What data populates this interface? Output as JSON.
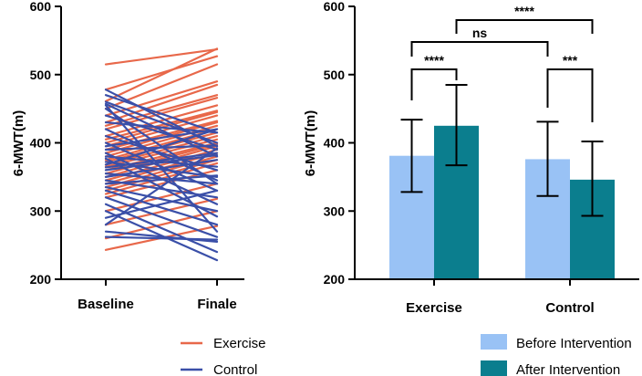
{
  "chart_data": [
    {
      "type": "line",
      "subtype": "paired-slope",
      "ylabel": "6-MWT(m)",
      "categories": [
        "Baseline",
        "Finale"
      ],
      "ylim": [
        200,
        600
      ],
      "yticks": [
        200,
        300,
        400,
        500,
        600
      ],
      "series": [
        {
          "name": "Exercise",
          "color": "#e8684a",
          "pairs": [
            [
              515,
              537
            ],
            [
              478,
              527
            ],
            [
              461,
              538
            ],
            [
              450,
              515
            ],
            [
              440,
              490
            ],
            [
              430,
              485
            ],
            [
              425,
              470
            ],
            [
              420,
              466
            ],
            [
              410,
              455
            ],
            [
              405,
              447
            ],
            [
              400,
              445
            ],
            [
              395,
              440
            ],
            [
              390,
              432
            ],
            [
              385,
              430
            ],
            [
              380,
              425
            ],
            [
              375,
              420
            ],
            [
              372,
              415
            ],
            [
              368,
              410
            ],
            [
              365,
              405
            ],
            [
              360,
              400
            ],
            [
              355,
              398
            ],
            [
              350,
              395
            ],
            [
              345,
              390
            ],
            [
              340,
              385
            ],
            [
              335,
              380
            ],
            [
              330,
              375
            ],
            [
              325,
              370
            ],
            [
              320,
              360
            ],
            [
              300,
              340
            ],
            [
              280,
              318
            ],
            [
              260,
              300
            ],
            [
              243,
              278
            ]
          ]
        },
        {
          "name": "Control",
          "color": "#3a4fa8",
          "pairs": [
            [
              478,
              395
            ],
            [
              470,
              415
            ],
            [
              460,
              400
            ],
            [
              457,
              380
            ],
            [
              455,
              270
            ],
            [
              450,
              340
            ],
            [
              440,
              390
            ],
            [
              430,
              415
            ],
            [
              420,
              345
            ],
            [
              410,
              360
            ],
            [
              400,
              330
            ],
            [
              395,
              420
            ],
            [
              390,
              396
            ],
            [
              385,
              310
            ],
            [
              380,
              365
            ],
            [
              377,
              292
            ],
            [
              372,
              350
            ],
            [
              368,
              420
            ],
            [
              364,
              385
            ],
            [
              360,
              382
            ],
            [
              355,
              340
            ],
            [
              350,
              375
            ],
            [
              345,
              320
            ],
            [
              340,
              352
            ],
            [
              335,
              300
            ],
            [
              330,
              280
            ],
            [
              320,
              262
            ],
            [
              310,
              240
            ],
            [
              300,
              228
            ],
            [
              290,
              330
            ],
            [
              280,
              392
            ],
            [
              270,
              255
            ],
            [
              262,
              258
            ]
          ]
        }
      ],
      "legend": [
        "Exercise",
        "Control"
      ]
    },
    {
      "type": "bar",
      "categories": [
        "Exercise",
        "Control"
      ],
      "ylabel": "6-MWT(m)",
      "ylim": [
        200,
        600
      ],
      "yticks": [
        200,
        300,
        400,
        500,
        600
      ],
      "series": [
        {
          "name": "Before Intervention",
          "color": "#99c2f5",
          "values": [
            381,
            376
          ],
          "err_low": [
            328,
            322
          ],
          "err_high": [
            434,
            431
          ]
        },
        {
          "name": "After Intervention",
          "color": "#0b7e8e",
          "values": [
            425,
            346
          ],
          "err_low": [
            367,
            293
          ],
          "err_high": [
            485,
            402
          ]
        }
      ],
      "significance": [
        {
          "label": "****",
          "between": "Exercise Before vs After"
        },
        {
          "label": "***",
          "between": "Control Before vs After"
        },
        {
          "label": "ns",
          "between": "Exercise Before vs Control Before"
        },
        {
          "label": "****",
          "between": "Exercise After vs Control After"
        }
      ]
    }
  ]
}
